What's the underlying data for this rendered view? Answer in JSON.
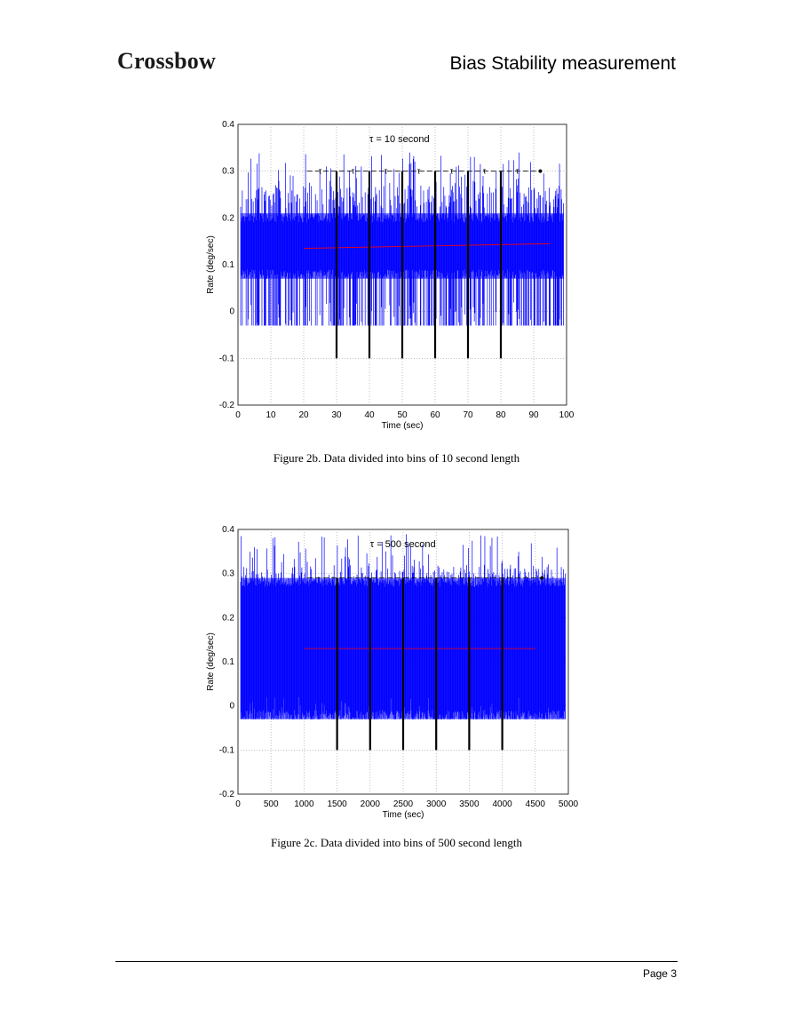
{
  "header": {
    "logo_text": "Crossbow",
    "doc_title": "Bias Stability measurement"
  },
  "figures": [
    {
      "caption": "Figure 2b. Data divided into bins of 10 second length",
      "annotation": "τ  = 10 second",
      "tau_labels": [
        "τ",
        "τ",
        "τ",
        "τ",
        "τ",
        "τ",
        "τ"
      ]
    },
    {
      "caption": "Figure 2c.  Data divided into bins of 500 second length",
      "annotation": "τ  = 500 second"
    }
  ],
  "footer": {
    "page": "Page 3"
  },
  "chart_data": [
    {
      "type": "line",
      "xlabel": "Time (sec)",
      "ylabel": "Rate (deg/sec)",
      "xlim": [
        0,
        100
      ],
      "ylim": [
        -0.2,
        0.4
      ],
      "xticks": [
        "0",
        "10",
        "20",
        "30",
        "40",
        "50",
        "60",
        "70",
        "80",
        "90",
        "100"
      ],
      "yticks": [
        "0.4",
        "0.3",
        "0.2",
        "0.1",
        "0",
        "-0.1",
        "-0.2"
      ],
      "grid": true,
      "series": [
        {
          "color": "#0000ff",
          "noise_band": [
            -0.03,
            0.27
          ],
          "dense_band": [
            0.07,
            0.21
          ]
        },
        {
          "color": "#ff0000",
          "x": [
            20,
            95
          ],
          "y": [
            0.135,
            0.145
          ]
        }
      ],
      "bin_boundaries_x": [
        30,
        40,
        50,
        60,
        70,
        80
      ],
      "bin_markers_y": [
        0.3,
        -0.1
      ]
    },
    {
      "type": "line",
      "xlabel": "Time (sec)",
      "ylabel": "Rate (deg/sec)",
      "xlim": [
        0,
        5000
      ],
      "ylim": [
        -0.2,
        0.4
      ],
      "xticks": [
        "0",
        "500",
        "1000",
        "1500",
        "2000",
        "2500",
        "3000",
        "3500",
        "4000",
        "4500",
        "5000"
      ],
      "yticks": [
        "0.4",
        "0.3",
        "0.2",
        "0.1",
        "0",
        "-0.1",
        "-0.2"
      ],
      "grid": true,
      "series": [
        {
          "color": "#0000ff",
          "noise_band": [
            -0.03,
            0.32
          ],
          "dense_band": [
            -0.03,
            0.29
          ]
        },
        {
          "color": "#ff0000",
          "x": [
            1000,
            4500
          ],
          "y": [
            0.13,
            0.13
          ]
        }
      ],
      "bin_boundaries_x": [
        1500,
        2000,
        2500,
        3000,
        3500,
        4000
      ],
      "bin_markers_y": [
        0.29,
        -0.1
      ]
    }
  ]
}
